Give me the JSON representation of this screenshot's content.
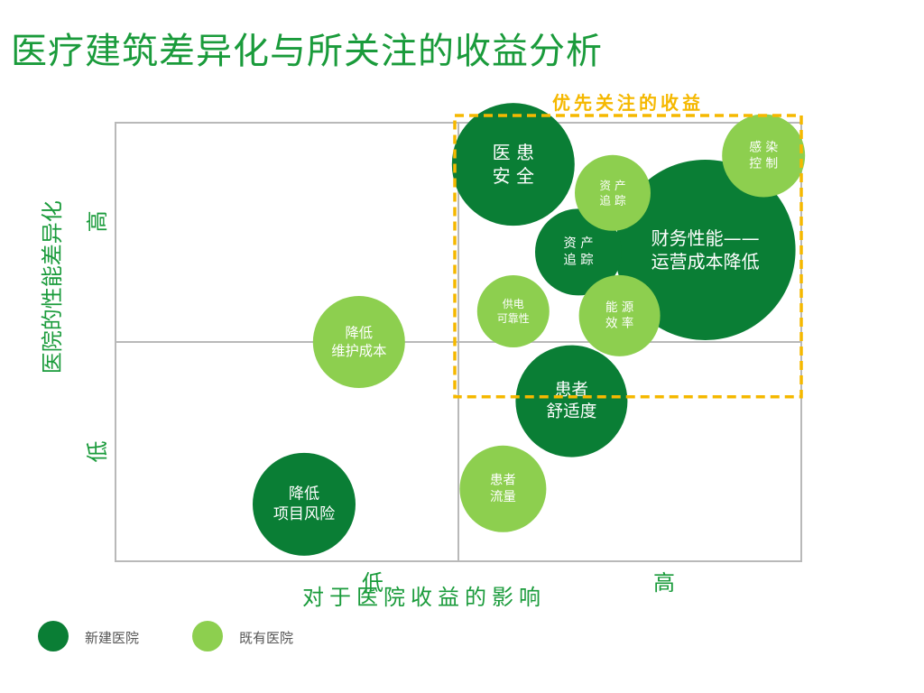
{
  "title": "医疗建筑差异化与所关注的收益分析",
  "colors": {
    "title": "#1a9b3b",
    "axis_text": "#1a9b3b",
    "grid": "#b9b9b9",
    "new_hospital": "#0a7e35",
    "existing_hospital": "#8dcf4f",
    "highlight": "#f5b800"
  },
  "legend": [
    {
      "label": "新建医院",
      "color_key": "new_hospital"
    },
    {
      "label": "既有医院",
      "color_key": "existing_hospital"
    }
  ],
  "chart_data": {
    "type": "bubble",
    "xlabel": "对于医院收益的影响",
    "ylabel": "医院的性能差异化",
    "x_ticks": [
      "低",
      "高"
    ],
    "y_ticks": [
      "低",
      "高"
    ],
    "xlim": [
      0,
      2
    ],
    "ylim": [
      0,
      2
    ],
    "grid": true,
    "legend_position": "bottom-left",
    "highlight_region": {
      "label": "优先关注的收益",
      "x": [
        1,
        2
      ],
      "y": [
        0.75,
        2
      ]
    },
    "series": [
      {
        "name": "新建医院",
        "color_key": "new_hospital"
      },
      {
        "name": "既有医院",
        "color_key": "existing_hospital"
      }
    ],
    "points": [
      {
        "lines": [
          "医 患",
          "安 全"
        ],
        "series": 0,
        "x": 1.16,
        "y": 1.81,
        "size": 0.68
      },
      {
        "lines": [
          "财务性能——",
          "运营成本降低"
        ],
        "series": 0,
        "x": 1.72,
        "y": 1.42,
        "size": 1.0
      },
      {
        "lines": [
          "资 产",
          "追 踪"
        ],
        "series": 0,
        "x": 1.35,
        "y": 1.41,
        "size": 0.48
      },
      {
        "lines": [
          "患者",
          "舒适度"
        ],
        "series": 0,
        "x": 1.33,
        "y": 0.73,
        "size": 0.62
      },
      {
        "lines": [
          "降低",
          "项目风险"
        ],
        "series": 0,
        "x": 0.55,
        "y": 0.26,
        "size": 0.57
      },
      {
        "lines": [
          "资 产",
          "追 踪"
        ],
        "series": 1,
        "x": 1.45,
        "y": 1.68,
        "size": 0.42
      },
      {
        "lines": [
          "感 染",
          "控 制"
        ],
        "series": 1,
        "x": 1.89,
        "y": 1.85,
        "size": 0.46
      },
      {
        "lines": [
          "能 源",
          "效 率"
        ],
        "series": 1,
        "x": 1.47,
        "y": 1.12,
        "size": 0.45
      },
      {
        "lines": [
          "供电",
          "可靠性"
        ],
        "series": 1,
        "x": 1.16,
        "y": 1.14,
        "size": 0.4
      },
      {
        "lines": [
          "降低",
          "维护成本"
        ],
        "series": 1,
        "x": 0.71,
        "y": 1.0,
        "size": 0.51
      },
      {
        "lines": [
          "患者",
          "流量"
        ],
        "series": 1,
        "x": 1.13,
        "y": 0.33,
        "size": 0.48
      }
    ]
  }
}
